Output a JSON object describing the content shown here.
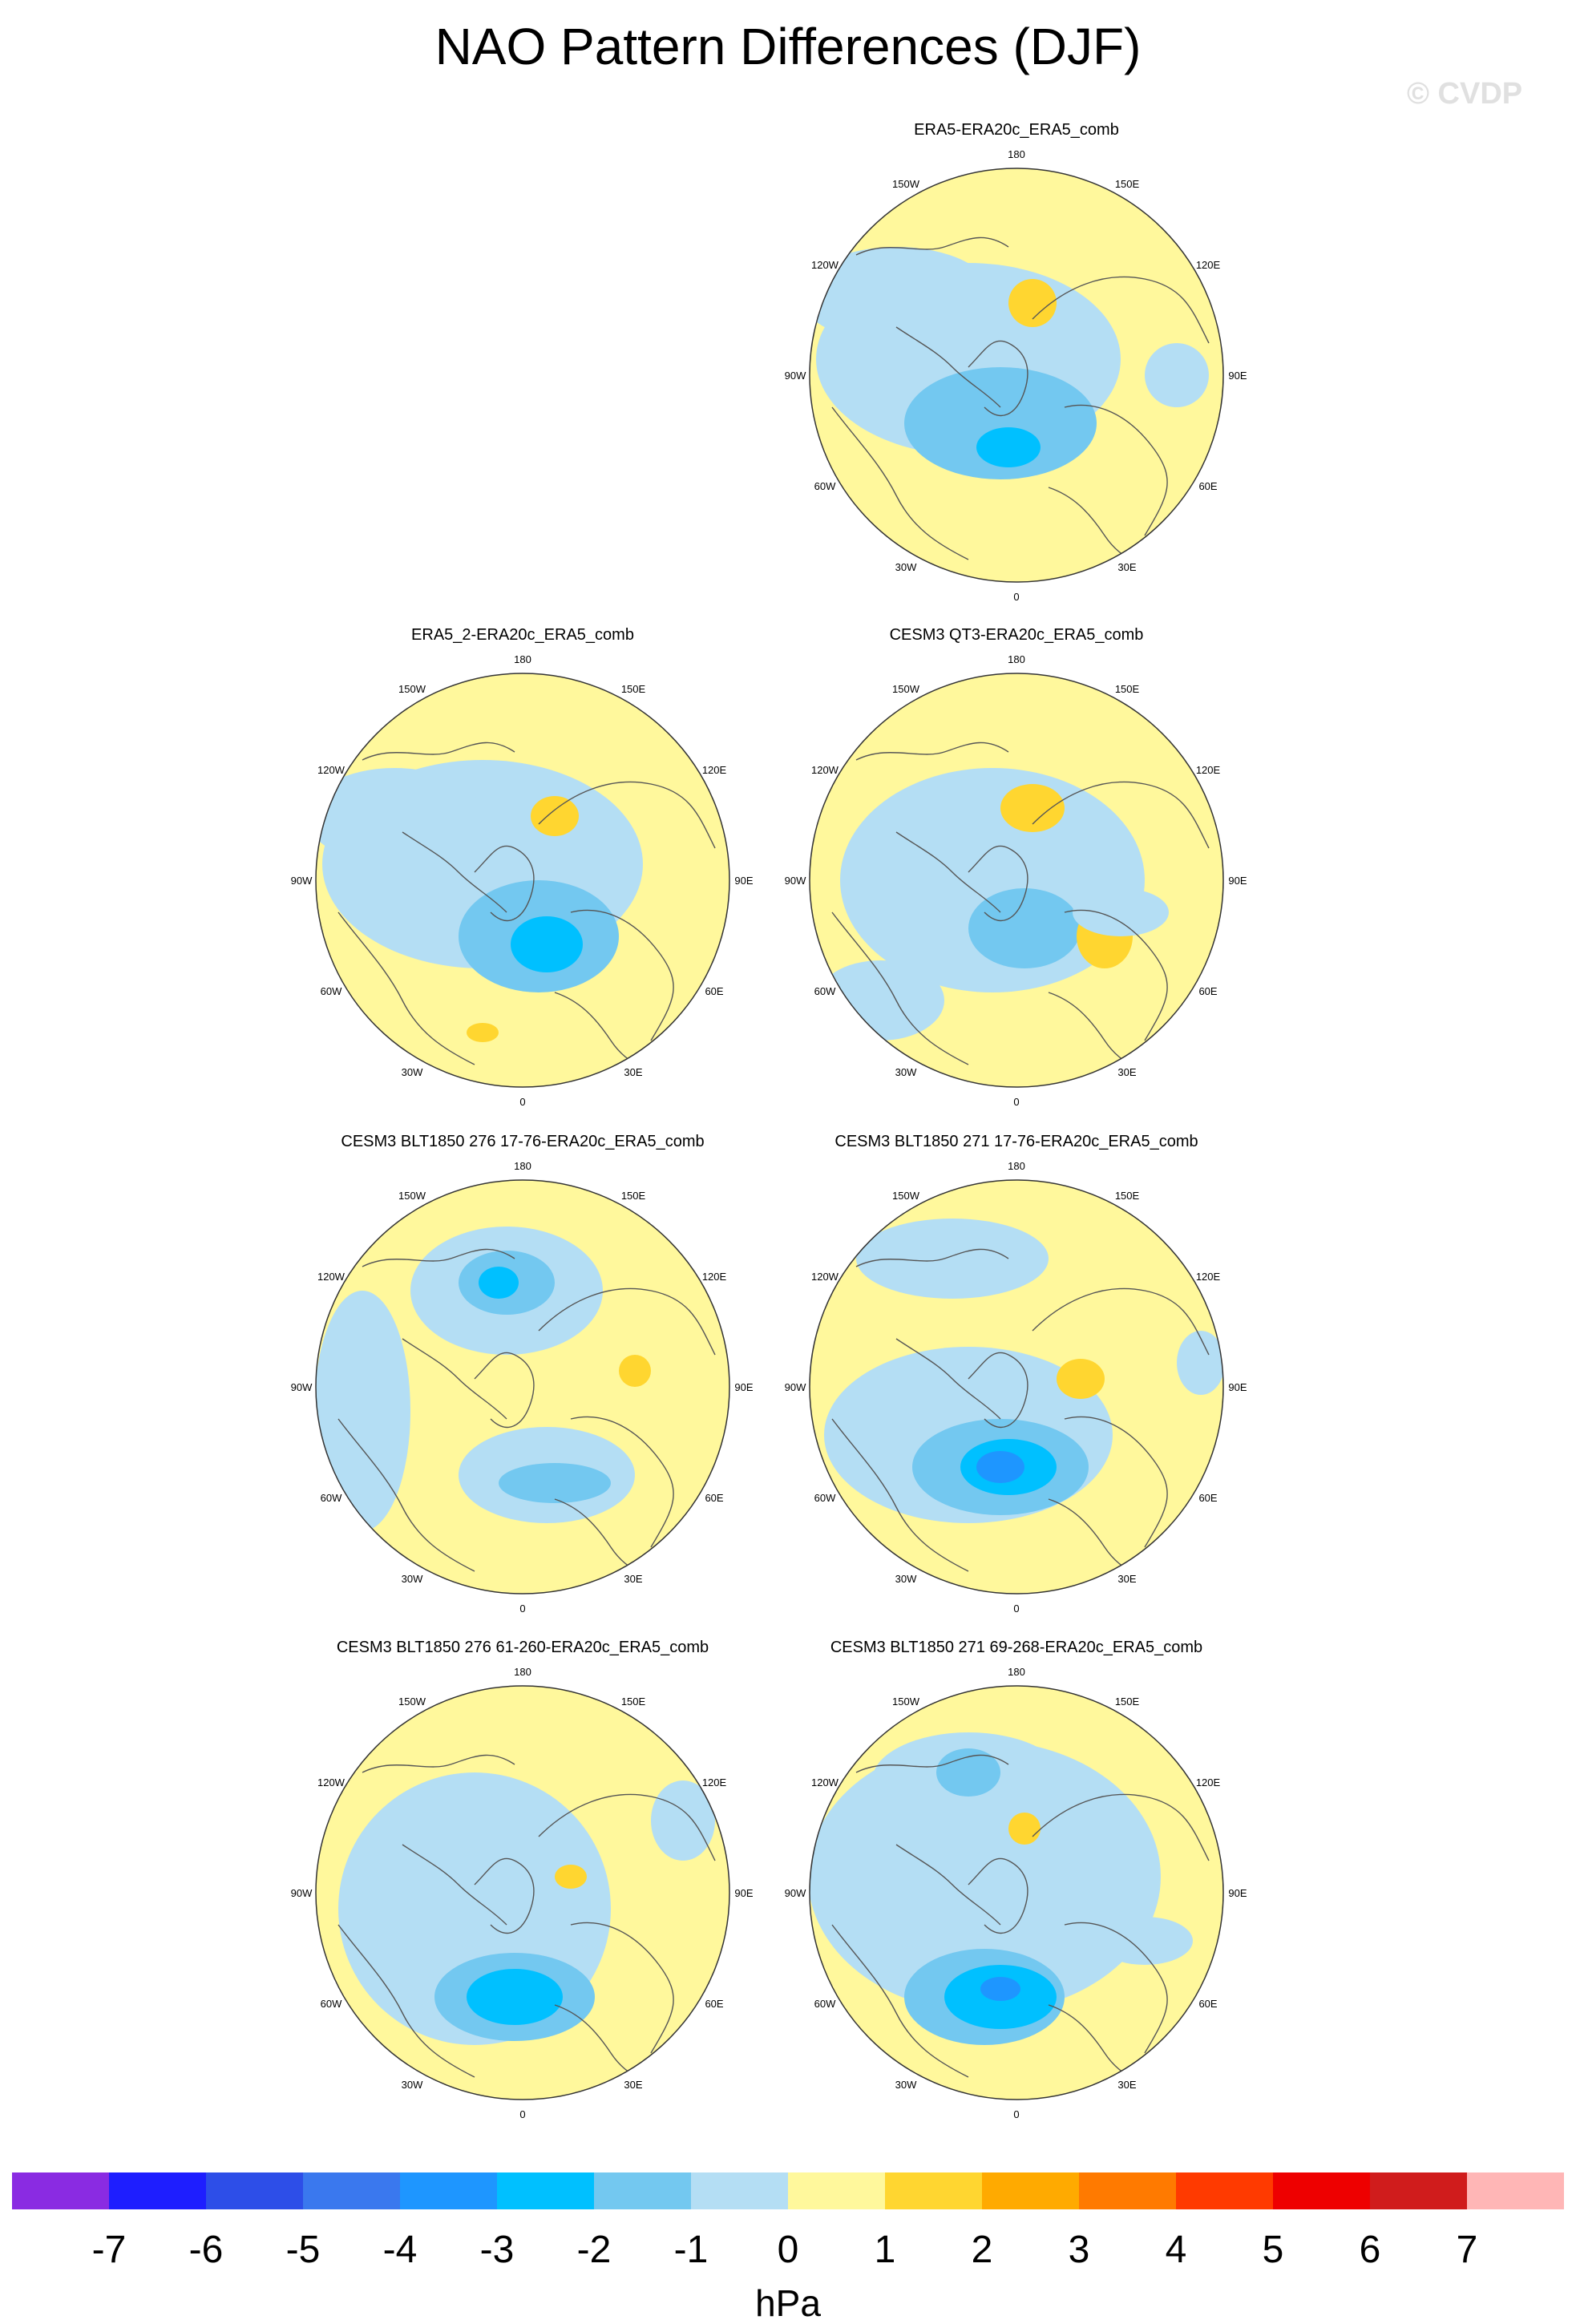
{
  "title": "NAO Pattern Differences (DJF)",
  "watermark": "© CVDP",
  "colors": {
    "background": "#ffffff",
    "coast": "#555555",
    "border": "#333333"
  },
  "panels": [
    {
      "title": "ERA5-ERA20c_ERA5_comb",
      "row": 0,
      "col": 1
    },
    {
      "title": "ERA5_2-ERA20c_ERA5_comb",
      "row": 1,
      "col": 0
    },
    {
      "title": "CESM3 QT3-ERA20c_ERA5_comb",
      "row": 1,
      "col": 1
    },
    {
      "title": "CESM3 BLT1850 276 17-76-ERA20c_ERA5_comb",
      "row": 2,
      "col": 0
    },
    {
      "title": "CESM3 BLT1850 271 17-76-ERA20c_ERA5_comb",
      "row": 2,
      "col": 1
    },
    {
      "title": "CESM3 BLT1850 276 61-260-ERA20c_ERA5_comb",
      "row": 3,
      "col": 0
    },
    {
      "title": "CESM3 BLT1850 271 69-268-ERA20c_ERA5_comb",
      "row": 3,
      "col": 1
    }
  ],
  "longitude_labels": [
    "180",
    "150E",
    "120E",
    "90E",
    "60E",
    "30E",
    "0",
    "30W",
    "60W",
    "90W",
    "120W",
    "150W"
  ],
  "colorbar": {
    "unit": "hPa",
    "tick_labels": [
      "-7",
      "-6",
      "-5",
      "-4",
      "-3",
      "-2",
      "-1",
      "0",
      "1",
      "2",
      "3",
      "4",
      "5",
      "6",
      "7"
    ],
    "colors": [
      "#8a2be2",
      "#1e1eff",
      "#2d4ee8",
      "#3a78ee",
      "#1e96ff",
      "#00c0ff",
      "#73c8f0",
      "#b4def4",
      "#fff89c",
      "#ffd630",
      "#ffaa00",
      "#ff7a00",
      "#ff3a00",
      "#ee0000",
      "#d01c1c",
      "#ffb6b6"
    ]
  }
}
